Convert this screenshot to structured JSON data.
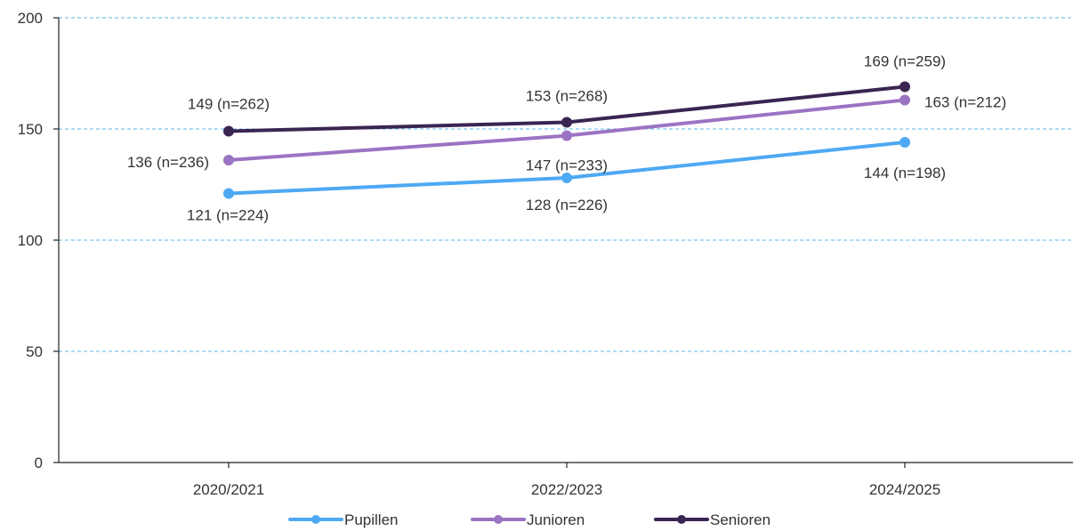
{
  "chart_data": {
    "type": "line",
    "categories": [
      "2020/2021",
      "2022/2023",
      "2024/2025"
    ],
    "ylim": [
      0,
      200
    ],
    "yticks": [
      0,
      50,
      100,
      150,
      200
    ],
    "grid": true,
    "legend_position": "bottom",
    "series": [
      {
        "name": "Pupillen",
        "color": "#4da9f3",
        "values": [
          121,
          128,
          144
        ],
        "labels": [
          "121 (n=224)",
          "128 (n=226)",
          "144 (n=198)"
        ]
      },
      {
        "name": "Junioren",
        "color": "#9b73c3",
        "values": [
          136,
          147,
          163
        ],
        "labels": [
          "136 (n=236)",
          "147 (n=233)",
          "163 (n=212)"
        ]
      },
      {
        "name": "Senioren",
        "color": "#3b2552",
        "values": [
          149,
          153,
          169
        ],
        "labels": [
          "149 (n=262)",
          "153 (n=268)",
          "169 (n=259)"
        ]
      }
    ]
  }
}
